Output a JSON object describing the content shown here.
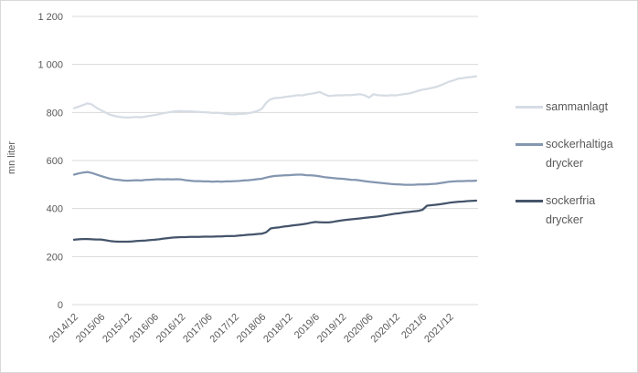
{
  "chart_data": {
    "type": "line",
    "title": "",
    "xlabel": "",
    "ylabel": "mn liter",
    "ylim": [
      0,
      1200
    ],
    "ytick_step": 200,
    "yticklabels": [
      "0",
      "200",
      "400",
      "600",
      "800",
      "1 000",
      "1 200"
    ],
    "xticklabels": [
      "2014/12",
      "2015/06",
      "2015/12",
      "2016/06",
      "2016/12",
      "2017/06",
      "2017/12",
      "2018/06",
      "2018/12",
      "2019/6",
      "2019/12",
      "2020/06",
      "2020/12",
      "2021/6",
      "2021/12"
    ],
    "xtick_every": 6,
    "x_interval": "monthly",
    "x_range_estimate": "2014/12 - 2022/06",
    "n_points": 91,
    "grid": "horizontal",
    "gridline_color": "#d9d9d9",
    "axis_text_color": "#595959",
    "plot_border_color": "#d9d9d9",
    "legend_position": "right",
    "series": [
      {
        "name": "sammanlagt",
        "color": "#d6dce4",
        "values": [
          818,
          824,
          831,
          838,
          833,
          820,
          810,
          800,
          791,
          786,
          782,
          780,
          779,
          780,
          781,
          780,
          783,
          786,
          789,
          793,
          797,
          800,
          803,
          805,
          806,
          804,
          805,
          803,
          802,
          801,
          800,
          798,
          799,
          797,
          795,
          793,
          792,
          794,
          795,
          797,
          801,
          806,
          815,
          840,
          855,
          860,
          861,
          864,
          867,
          869,
          872,
          871,
          875,
          878,
          881,
          885,
          876,
          869,
          870,
          872,
          871,
          873,
          872,
          874,
          876,
          872,
          862,
          876,
          872,
          871,
          870,
          872,
          871,
          874,
          877,
          879,
          884,
          890,
          895,
          898,
          902,
          906,
          913,
          921,
          929,
          934,
          941,
          943,
          946,
          948,
          951
        ]
      },
      {
        "name": "sockerhaltiga drycker",
        "color": "#8496b0",
        "values": [
          541,
          546,
          550,
          552,
          548,
          542,
          536,
          530,
          525,
          521,
          519,
          517,
          516,
          517,
          518,
          517,
          519,
          520,
          521,
          522,
          521,
          522,
          521,
          522,
          521,
          518,
          516,
          514,
          514,
          513,
          513,
          512,
          513,
          512,
          513,
          513,
          514,
          515,
          517,
          518,
          520,
          522,
          524,
          529,
          533,
          536,
          537,
          538,
          539,
          540,
          541,
          541,
          539,
          538,
          537,
          534,
          531,
          529,
          527,
          525,
          524,
          522,
          520,
          519,
          517,
          514,
          512,
          510,
          508,
          506,
          504,
          502,
          501,
          500,
          499,
          499,
          499,
          500,
          500,
          501,
          502,
          503,
          506,
          509,
          512,
          513,
          514,
          514,
          515,
          515,
          516
        ]
      },
      {
        "name": "sockerfria drycker",
        "color": "#44546a",
        "values": [
          270,
          272,
          273,
          273,
          272,
          271,
          271,
          268,
          265,
          263,
          262,
          262,
          262,
          263,
          265,
          266,
          267,
          269,
          270,
          272,
          275,
          277,
          279,
          280,
          281,
          281,
          282,
          282,
          282,
          283,
          283,
          283,
          284,
          284,
          285,
          285,
          286,
          288,
          289,
          291,
          292,
          294,
          295,
          301,
          317,
          320,
          322,
          325,
          327,
          330,
          332,
          334,
          337,
          341,
          344,
          343,
          342,
          342,
          345,
          348,
          351,
          353,
          355,
          357,
          359,
          361,
          363,
          365,
          367,
          370,
          373,
          376,
          379,
          381,
          384,
          386,
          388,
          390,
          395,
          412,
          414,
          416,
          418,
          421,
          424,
          426,
          428,
          429,
          431,
          432,
          433
        ]
      }
    ]
  },
  "legend": {
    "items": [
      {
        "label": "sammanlagt"
      },
      {
        "label": "sockerhaltiga drycker"
      },
      {
        "label": "sockerfria drycker"
      }
    ]
  }
}
